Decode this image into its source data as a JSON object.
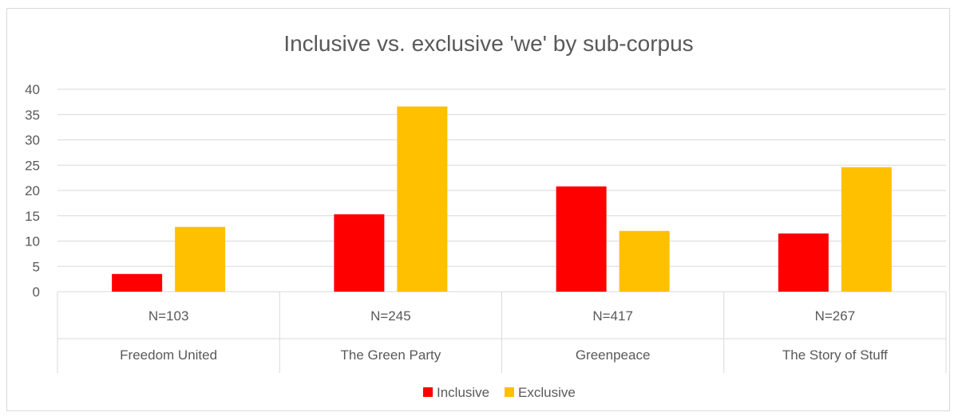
{
  "chart_data": {
    "type": "bar",
    "title": "Inclusive vs. exclusive 'we' by sub-corpus",
    "categories": [
      {
        "sub": "N=103",
        "main": "Freedom United"
      },
      {
        "sub": "N=245",
        "main": "The Green Party"
      },
      {
        "sub": "N=417",
        "main": "Greenpeace"
      },
      {
        "sub": "N=267",
        "main": "The Story of Stuff"
      }
    ],
    "series": [
      {
        "name": "Inclusive",
        "color": "#ff0000",
        "values": [
          3.5,
          15.3,
          20.8,
          11.5
        ]
      },
      {
        "name": "Exclusive",
        "color": "#ffc000",
        "values": [
          12.8,
          36.6,
          12.0,
          24.6
        ]
      }
    ],
    "ylim": [
      0,
      40
    ],
    "yticks": [
      0,
      5,
      10,
      15,
      20,
      25,
      30,
      35,
      40
    ],
    "grid": true,
    "legend_position": "bottom"
  }
}
